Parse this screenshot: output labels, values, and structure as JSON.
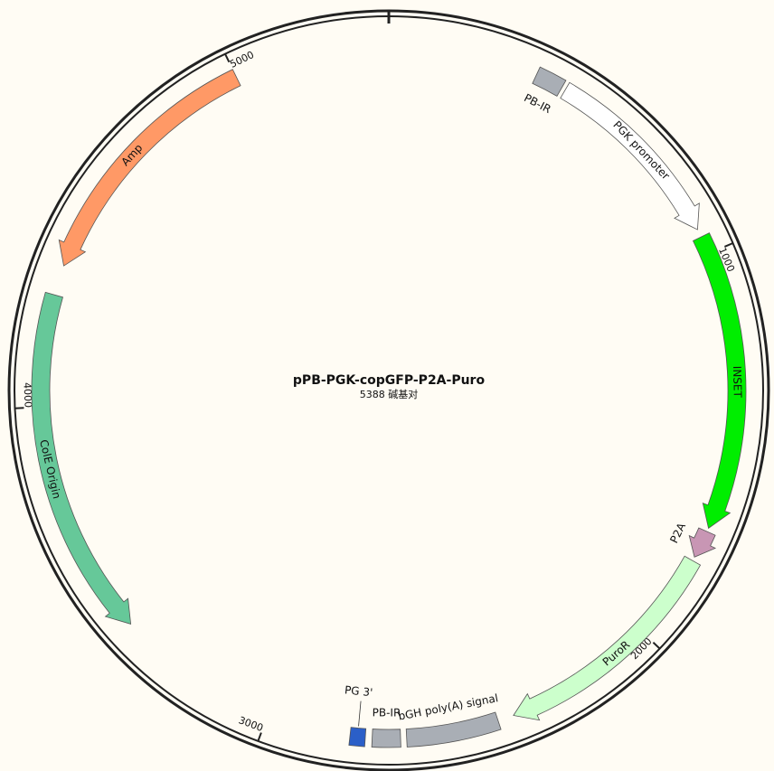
{
  "map": {
    "title": "pPB-PGK-copGFP-P2A-Puro",
    "length": 5388,
    "length_unit": "碱基对",
    "ticks": [
      1000,
      2000,
      3000,
      4000,
      5000
    ],
    "features": [
      {
        "label": "PB-IR",
        "start": 375,
        "end": 445,
        "strand": "forward",
        "shape": "box",
        "color": "#a9aeb5"
      },
      {
        "label": "PGK promoter",
        "start": 455,
        "end": 935,
        "strand": "forward",
        "shape": "arrow",
        "color": "#ffffff"
      },
      {
        "label": "INSET",
        "start": 955,
        "end": 1696,
        "strand": "forward",
        "shape": "arrow",
        "color": "#00ee00"
      },
      {
        "label": "P2A",
        "start": 1705,
        "end": 1775,
        "strand": "forward",
        "shape": "arrow",
        "color": "#c896b4"
      },
      {
        "label": "PuroR",
        "start": 1785,
        "end": 2380,
        "strand": "forward",
        "shape": "arrow",
        "color": "#ccffcc"
      },
      {
        "label": "bGH poly(A) signal",
        "start": 2420,
        "end": 2650,
        "strand": "forward",
        "shape": "box",
        "color": "#a9aeb5"
      },
      {
        "label": "PB-IR",
        "start": 2665,
        "end": 2735,
        "strand": "forward",
        "shape": "box",
        "color": "#a9aeb5"
      },
      {
        "label": "PG 3'",
        "start": 2752,
        "end": 2790,
        "strand": "forward",
        "shape": "box",
        "color": "#2b5fc8"
      },
      {
        "label": "ColE Origin",
        "start": 3410,
        "end": 4280,
        "strand": "reverse",
        "shape": "arrow",
        "color": "#66c899"
      },
      {
        "label": "Amp",
        "start": 4355,
        "end": 5000,
        "strand": "reverse",
        "shape": "arrow",
        "color": "#ff9966"
      }
    ]
  }
}
